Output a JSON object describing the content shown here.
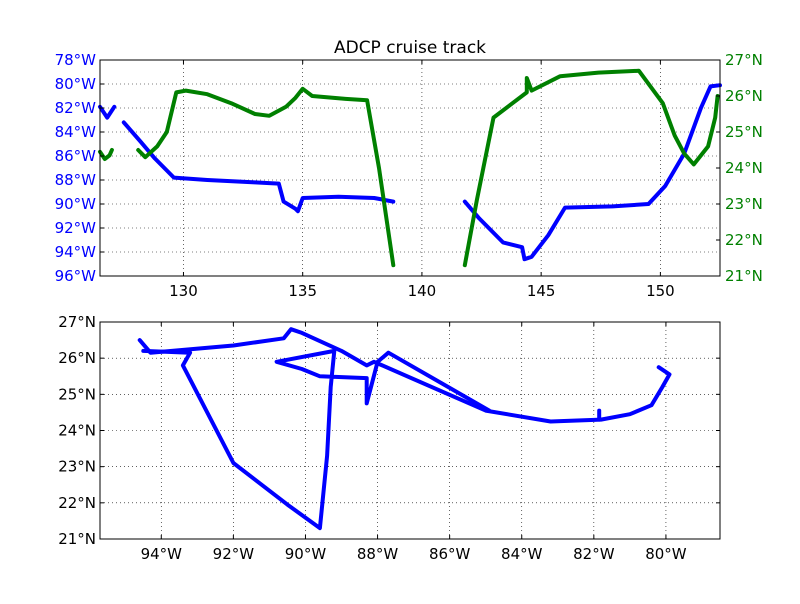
{
  "chart_data": [
    {
      "type": "line",
      "title": "ADCP cruise track",
      "xlim": [
        126.5,
        152.5
      ],
      "x_ticks": [
        130,
        135,
        140,
        145,
        150
      ],
      "x_tick_labels": [
        "130",
        "135",
        "140",
        "145",
        "150"
      ],
      "left_axis": {
        "quantity": "longitude",
        "ylim": [
          96,
          78
        ],
        "ticks": [
          78,
          80,
          82,
          84,
          86,
          88,
          90,
          92,
          94,
          96
        ],
        "tick_labels": [
          "78°W",
          "80°W",
          "82°W",
          "84°W",
          "86°W",
          "88°W",
          "90°W",
          "92°W",
          "94°W",
          "96°W"
        ],
        "color": "#0000ff"
      },
      "right_axis": {
        "quantity": "latitude",
        "ylim": [
          21,
          27
        ],
        "ticks": [
          21,
          22,
          23,
          24,
          25,
          26,
          27
        ],
        "tick_labels": [
          "21°N",
          "22°N",
          "23°N",
          "24°N",
          "25°N",
          "26°N",
          "27°N"
        ],
        "color": "#008000"
      },
      "grid": true,
      "series": [
        {
          "axis": "left",
          "color": "#0000ff",
          "segments": [
            [
              [
                126.5,
                81.9
              ],
              [
                126.8,
                82.8
              ],
              [
                127.1,
                81.9
              ]
            ],
            [
              [
                127.5,
                83.2
              ],
              [
                128.2,
                84.8
              ],
              [
                128.8,
                86.2
              ],
              [
                129.6,
                87.8
              ],
              [
                131.0,
                88.0
              ],
              [
                133.0,
                88.2
              ],
              [
                134.0,
                88.3
              ],
              [
                134.2,
                89.8
              ],
              [
                134.7,
                90.4
              ],
              [
                134.8,
                90.6
              ],
              [
                135.0,
                89.5
              ],
              [
                136.5,
                89.4
              ],
              [
                138.0,
                89.5
              ],
              [
                138.8,
                89.8
              ]
            ],
            [
              [
                141.8,
                89.8
              ],
              [
                142.4,
                91.2
              ],
              [
                143.4,
                93.2
              ],
              [
                144.2,
                93.6
              ],
              [
                144.3,
                94.6
              ],
              [
                144.6,
                94.4
              ],
              [
                145.3,
                92.6
              ],
              [
                146.0,
                90.3
              ],
              [
                148.0,
                90.2
              ],
              [
                149.5,
                90.0
              ],
              [
                150.2,
                88.5
              ],
              [
                151.0,
                85.8
              ],
              [
                151.7,
                82.0
              ],
              [
                152.1,
                80.2
              ],
              [
                152.5,
                80.1
              ]
            ]
          ]
        },
        {
          "axis": "right",
          "color": "#008000",
          "segments": [
            [
              [
                126.5,
                24.45
              ],
              [
                126.7,
                24.25
              ],
              [
                126.9,
                24.35
              ],
              [
                127.0,
                24.5
              ]
            ],
            [
              [
                128.1,
                24.5
              ],
              [
                128.4,
                24.3
              ],
              [
                128.9,
                24.6
              ],
              [
                129.3,
                25.0
              ],
              [
                129.7,
                26.1
              ],
              [
                130.1,
                26.15
              ],
              [
                131.0,
                26.05
              ],
              [
                132.0,
                25.8
              ],
              [
                133.0,
                25.5
              ],
              [
                133.6,
                25.45
              ],
              [
                134.3,
                25.7
              ],
              [
                134.7,
                25.95
              ],
              [
                135.0,
                26.2
              ],
              [
                135.4,
                26.0
              ],
              [
                136.8,
                25.92
              ],
              [
                137.7,
                25.88
              ],
              [
                138.2,
                24.0
              ],
              [
                138.8,
                21.3
              ]
            ],
            [
              [
                141.8,
                21.3
              ],
              [
                142.3,
                23.1
              ],
              [
                143.0,
                25.4
              ],
              [
                143.8,
                25.8
              ],
              [
                144.4,
                26.1
              ],
              [
                144.4,
                26.5
              ],
              [
                144.6,
                26.15
              ],
              [
                145.8,
                26.55
              ],
              [
                147.4,
                26.65
              ],
              [
                149.1,
                26.7
              ],
              [
                150.1,
                25.8
              ],
              [
                150.6,
                24.9
              ],
              [
                151.0,
                24.4
              ],
              [
                151.4,
                24.1
              ],
              [
                152.0,
                24.6
              ],
              [
                152.3,
                25.4
              ],
              [
                152.4,
                26.0
              ]
            ]
          ]
        }
      ]
    },
    {
      "type": "line",
      "xlim": [
        95.7,
        78.5
      ],
      "ylim": [
        21,
        27
      ],
      "x_ticks": [
        94,
        92,
        90,
        88,
        86,
        84,
        82,
        80
      ],
      "x_tick_labels": [
        "94°W",
        "92°W",
        "90°W",
        "88°W",
        "86°W",
        "84°W",
        "82°W",
        "80°W"
      ],
      "y_ticks": [
        21,
        22,
        23,
        24,
        25,
        26,
        27
      ],
      "y_tick_labels": [
        "21°N",
        "22°N",
        "23°N",
        "24°N",
        "25°N",
        "26°N",
        "27°N"
      ],
      "grid": true,
      "series": [
        {
          "color": "#0000ff",
          "segments": [
            [
              [
                94.6,
                26.5
              ],
              [
                94.3,
                26.15
              ],
              [
                92.0,
                26.35
              ],
              [
                90.6,
                26.55
              ],
              [
                90.4,
                26.8
              ],
              [
                90.1,
                26.7
              ],
              [
                89.0,
                26.2
              ],
              [
                88.3,
                25.8
              ],
              [
                88.1,
                25.9
              ],
              [
                85.0,
                24.55
              ],
              [
                83.2,
                24.25
              ],
              [
                81.8,
                24.3
              ],
              [
                81.0,
                24.45
              ],
              [
                80.4,
                24.7
              ],
              [
                80.1,
                25.2
              ],
              [
                79.9,
                25.55
              ],
              [
                80.2,
                25.75
              ]
            ],
            [
              [
                94.5,
                26.2
              ],
              [
                93.2,
                26.15
              ],
              [
                93.4,
                25.8
              ],
              [
                92.0,
                23.1
              ],
              [
                90.5,
                21.95
              ],
              [
                89.6,
                21.3
              ],
              [
                89.4,
                23.3
              ],
              [
                89.3,
                25.2
              ],
              [
                89.2,
                26.2
              ],
              [
                90.8,
                25.9
              ],
              [
                90.1,
                25.7
              ],
              [
                89.6,
                25.5
              ],
              [
                88.3,
                25.45
              ],
              [
                88.3,
                24.75
              ],
              [
                88.0,
                25.9
              ],
              [
                87.7,
                26.15
              ],
              [
                84.9,
                24.55
              ]
            ],
            [
              [
                81.85,
                24.3
              ],
              [
                81.85,
                24.55
              ]
            ]
          ]
        }
      ]
    }
  ]
}
